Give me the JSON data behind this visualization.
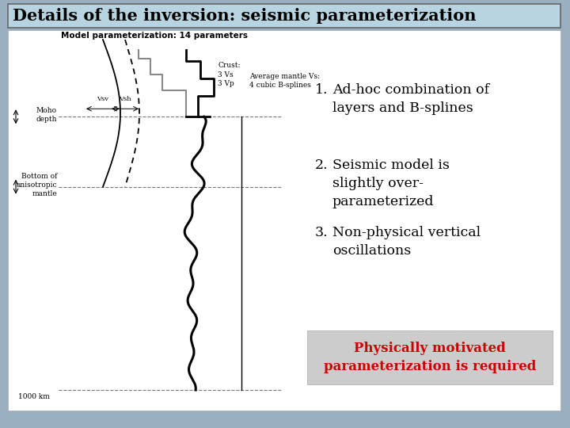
{
  "title": "Details of the inversion: seismic parameterization",
  "title_bg": "#b8d4e0",
  "title_border": "#888888",
  "slide_bg": "#9ab0c0",
  "item1": "Ad-hoc combination of\nlayers and B-splines",
  "item2": "Seismic model is\nslightly over-\nparameterized",
  "item3": "Non-physical vertical\noscillations",
  "footer": "Physically motivated\nparameterization is required",
  "footer_color": "#cc0000",
  "footer_bg": "#cccccc",
  "diagram_title": "Model parameterization: 14 parameters",
  "label_moho": "Moho\ndepth",
  "label_bottom": "Bottom of\nanisotropic\nmantle",
  "label_crust": "Crust:\n3 Vs\n3 Vp",
  "label_mantle": "Average mantle Vs:\n4 cubic B-splines",
  "label_vsv": "Vsv",
  "label_vsh": "Vsh",
  "label_1000km": "1000 km"
}
